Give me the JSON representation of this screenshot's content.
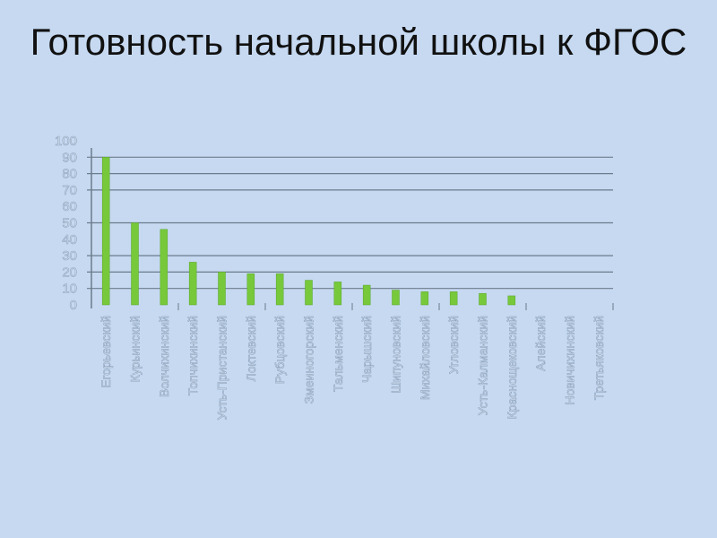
{
  "title": "Готовность начальной школы к ФГОС",
  "chart_data": {
    "type": "bar",
    "title": "Готовность начальной школы к ФГОС",
    "categories": [
      "Егорьевский",
      "Курьинский",
      "Волчихинский",
      "Топчихинский",
      "Усть-Пристанский",
      "Локтевский",
      "Рубцовский",
      "Змеиногорский",
      "Тальменский",
      "Чарышский",
      "Шипуновский",
      "Михайловский",
      "Угловский",
      "Усть-Калманский",
      "Краснощековский",
      "Алейский",
      "Новичихинский",
      "Третьяковский"
    ],
    "values": [
      90,
      50,
      46,
      26,
      20,
      19,
      19,
      15,
      14,
      12,
      9,
      8,
      8,
      7,
      5.5,
      0,
      0,
      0
    ],
    "ylim": [
      0,
      100
    ],
    "yticks": [
      0,
      10,
      20,
      30,
      40,
      50,
      60,
      70,
      80,
      90,
      100
    ],
    "xlabel": "",
    "ylabel": "",
    "bar_color": "#77c93b",
    "grid": true,
    "legend": "none"
  }
}
